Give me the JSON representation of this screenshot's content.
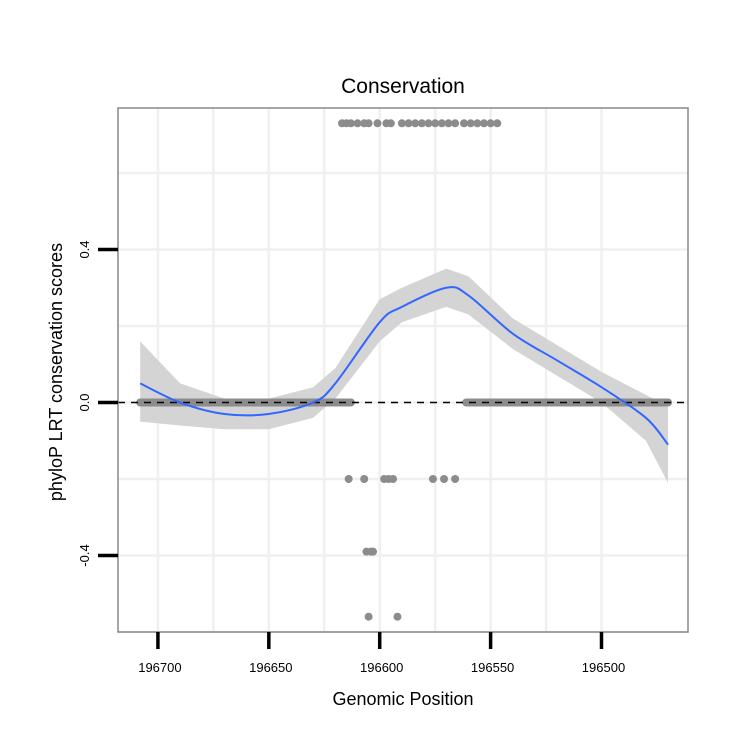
{
  "chart_data": {
    "type": "scatter",
    "title": "Conservation",
    "xlabel": "Genomic Position",
    "ylabel": "phyloP LRT conservation scores",
    "x_reversed": true,
    "xlim": [
      196718,
      196461
    ],
    "ylim": [
      -0.6,
      0.77
    ],
    "x_ticks": [
      196700,
      196650,
      196600,
      196550,
      196500
    ],
    "x_tick_labels": [
      "196700",
      "196650",
      "196600",
      "196550",
      "196500"
    ],
    "y_ticks": [
      -0.4,
      0.0,
      0.4
    ],
    "y_tick_labels": [
      "-0.4",
      "0.0",
      "0.4"
    ],
    "grid": true,
    "reference_line": {
      "y": 0.0,
      "style": "dashed"
    },
    "colors": {
      "points": "#8c8c8c",
      "smooth_line": "#3366ff",
      "confidence_band": "#d4d4d4",
      "panel_border": "#888888",
      "grid": "#f0f0f0",
      "reference_line": "#000000"
    },
    "series": [
      {
        "name": "scores",
        "kind": "points",
        "points": [
          {
            "x": 196617,
            "y": 0.73
          },
          {
            "x": 196615,
            "y": 0.73
          },
          {
            "x": 196613,
            "y": 0.73
          },
          {
            "x": 196610,
            "y": 0.73
          },
          {
            "x": 196607,
            "y": 0.73
          },
          {
            "x": 196605,
            "y": 0.73
          },
          {
            "x": 196601,
            "y": 0.73
          },
          {
            "x": 196597,
            "y": 0.73
          },
          {
            "x": 196595,
            "y": 0.73
          },
          {
            "x": 196590,
            "y": 0.73
          },
          {
            "x": 196587,
            "y": 0.73
          },
          {
            "x": 196584,
            "y": 0.73
          },
          {
            "x": 196581,
            "y": 0.73
          },
          {
            "x": 196578,
            "y": 0.73
          },
          {
            "x": 196575,
            "y": 0.73
          },
          {
            "x": 196572,
            "y": 0.73
          },
          {
            "x": 196569,
            "y": 0.73
          },
          {
            "x": 196566,
            "y": 0.73
          },
          {
            "x": 196562,
            "y": 0.73
          },
          {
            "x": 196559,
            "y": 0.73
          },
          {
            "x": 196556,
            "y": 0.73
          },
          {
            "x": 196553,
            "y": 0.73
          },
          {
            "x": 196550,
            "y": 0.73
          },
          {
            "x": 196547,
            "y": 0.73
          },
          {
            "x": 196614,
            "y": -0.2
          },
          {
            "x": 196607,
            "y": -0.2
          },
          {
            "x": 196598,
            "y": -0.2
          },
          {
            "x": 196596,
            "y": -0.2
          },
          {
            "x": 196594,
            "y": -0.2
          },
          {
            "x": 196576,
            "y": -0.2
          },
          {
            "x": 196571,
            "y": -0.2
          },
          {
            "x": 196566,
            "y": -0.2
          },
          {
            "x": 196606,
            "y": -0.39
          },
          {
            "x": 196604,
            "y": -0.39
          },
          {
            "x": 196603,
            "y": -0.39
          },
          {
            "x": 196605,
            "y": -0.56
          },
          {
            "x": 196592,
            "y": -0.56
          }
        ],
        "dense_segments": [
          {
            "x_start": 196708,
            "x_end": 196613,
            "y": 0.0
          },
          {
            "x_start": 196561,
            "x_end": 196470,
            "y": 0.0
          }
        ]
      },
      {
        "name": "loess smooth",
        "kind": "line",
        "x": [
          196708,
          196690,
          196670,
          196650,
          196630,
          196620,
          196600,
          196590,
          196570,
          196560,
          196540,
          196520,
          196500,
          196480,
          196470
        ],
        "y": [
          0.05,
          0.0,
          -0.03,
          -0.03,
          0.0,
          0.05,
          0.21,
          0.25,
          0.3,
          0.28,
          0.18,
          0.11,
          0.04,
          -0.04,
          -0.11
        ],
        "lower": [
          -0.05,
          -0.06,
          -0.07,
          -0.07,
          -0.04,
          0.01,
          0.16,
          0.21,
          0.25,
          0.23,
          0.14,
          0.07,
          0.0,
          -0.1,
          -0.21
        ],
        "upper": [
          0.16,
          0.05,
          0.01,
          0.01,
          0.04,
          0.09,
          0.27,
          0.3,
          0.35,
          0.33,
          0.22,
          0.15,
          0.08,
          0.02,
          -0.01
        ]
      }
    ]
  }
}
